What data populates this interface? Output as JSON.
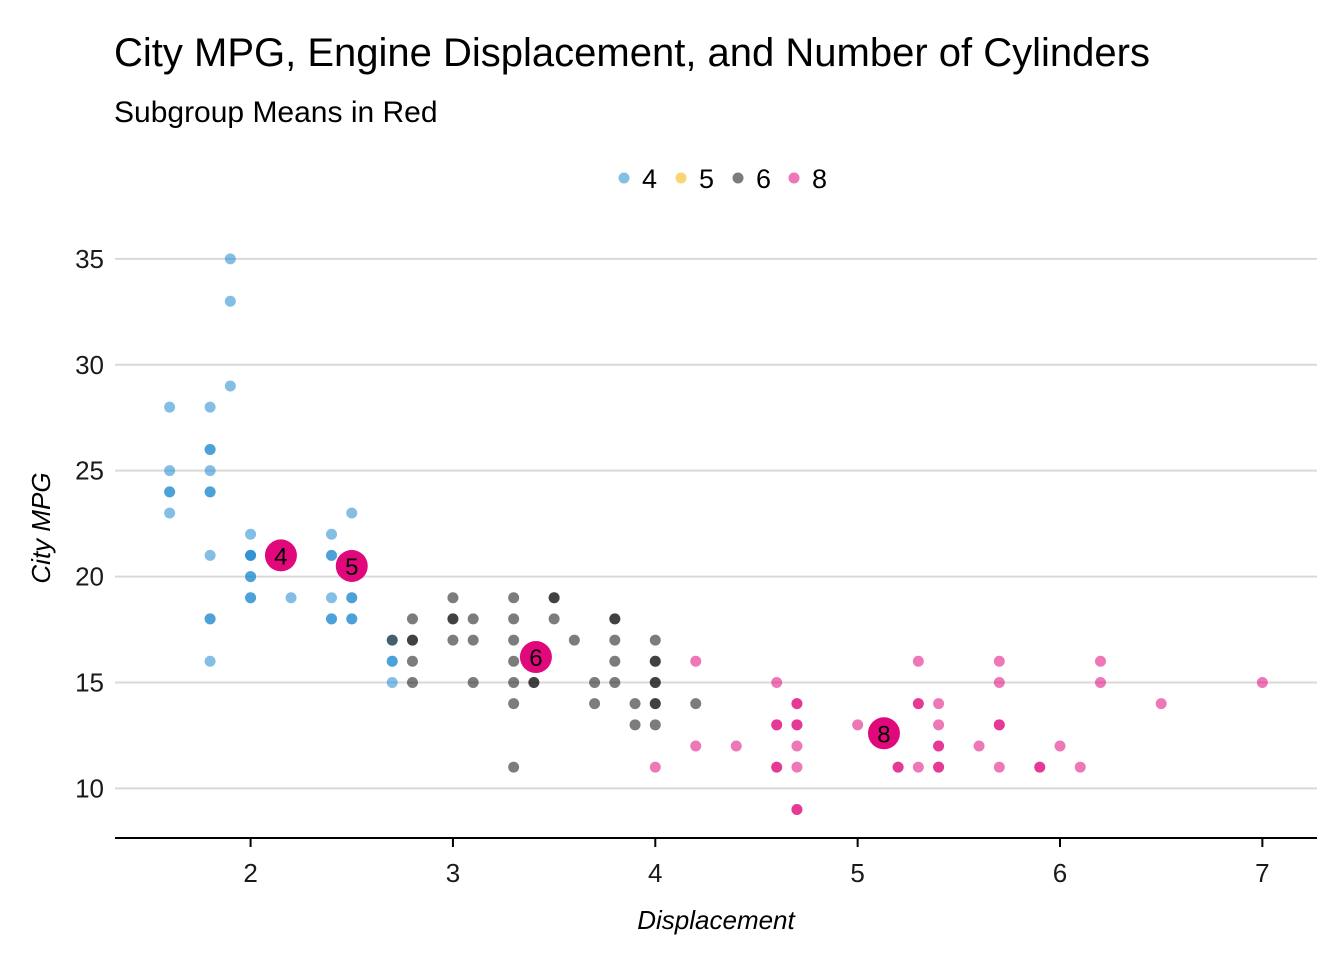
{
  "chart_data": {
    "type": "scatter",
    "title": "City MPG, Engine Displacement, and Number of Cylinders",
    "subtitle": "Subgroup Means in Red",
    "xlabel": "Displacement",
    "ylabel": "City MPG",
    "xlim": [
      1.33,
      7.27
    ],
    "ylim": [
      7.75,
      36.6
    ],
    "xticks": [
      2,
      3,
      4,
      5,
      6,
      7
    ],
    "yticks": [
      10,
      15,
      20,
      25,
      30,
      35
    ],
    "grid": "horizontal",
    "legend_position": "top",
    "legend": [
      {
        "label": "4",
        "color": "#1f88cf"
      },
      {
        "label": "5",
        "color": "#f5b301"
      },
      {
        "label": "6",
        "color": "#111111"
      },
      {
        "label": "8",
        "color": "#e0087b"
      }
    ],
    "mean_color": "#e0087b",
    "series": [
      {
        "name": "4",
        "color": "#1f88cf",
        "points": [
          [
            1.6,
            28
          ],
          [
            1.6,
            25
          ],
          [
            1.6,
            24
          ],
          [
            1.6,
            24
          ],
          [
            1.6,
            23
          ],
          [
            1.8,
            28
          ],
          [
            1.8,
            26
          ],
          [
            1.8,
            26
          ],
          [
            1.8,
            25
          ],
          [
            1.8,
            24
          ],
          [
            1.8,
            24
          ],
          [
            1.8,
            21
          ],
          [
            1.8,
            18
          ],
          [
            1.8,
            18
          ],
          [
            1.8,
            16
          ],
          [
            1.9,
            35
          ],
          [
            1.9,
            33
          ],
          [
            1.9,
            29
          ],
          [
            2.0,
            22
          ],
          [
            2.0,
            21
          ],
          [
            2.0,
            21
          ],
          [
            2.0,
            21
          ],
          [
            2.0,
            20
          ],
          [
            2.0,
            20
          ],
          [
            2.0,
            19
          ],
          [
            2.0,
            19
          ],
          [
            2.2,
            21
          ],
          [
            2.2,
            19
          ],
          [
            2.4,
            22
          ],
          [
            2.4,
            21
          ],
          [
            2.4,
            21
          ],
          [
            2.4,
            19
          ],
          [
            2.4,
            18
          ],
          [
            2.4,
            18
          ],
          [
            2.5,
            23
          ],
          [
            2.5,
            21
          ],
          [
            2.5,
            19
          ],
          [
            2.5,
            19
          ],
          [
            2.5,
            18
          ],
          [
            2.5,
            18
          ],
          [
            2.7,
            17
          ],
          [
            2.7,
            16
          ],
          [
            2.7,
            16
          ],
          [
            2.7,
            15
          ]
        ]
      },
      {
        "name": "5",
        "color": "#f5b301",
        "points": [
          [
            2.5,
            21
          ],
          [
            2.5,
            20
          ]
        ]
      },
      {
        "name": "6",
        "color": "#111111",
        "points": [
          [
            2.7,
            17
          ],
          [
            2.8,
            18
          ],
          [
            2.8,
            17
          ],
          [
            2.8,
            17
          ],
          [
            2.8,
            16
          ],
          [
            2.8,
            15
          ],
          [
            3.0,
            19
          ],
          [
            3.0,
            18
          ],
          [
            3.0,
            18
          ],
          [
            3.0,
            17
          ],
          [
            3.1,
            18
          ],
          [
            3.1,
            17
          ],
          [
            3.1,
            15
          ],
          [
            3.3,
            19
          ],
          [
            3.3,
            18
          ],
          [
            3.3,
            17
          ],
          [
            3.3,
            16
          ],
          [
            3.3,
            15
          ],
          [
            3.3,
            14
          ],
          [
            3.3,
            11
          ],
          [
            3.4,
            15
          ],
          [
            3.4,
            15
          ],
          [
            3.5,
            19
          ],
          [
            3.5,
            19
          ],
          [
            3.5,
            18
          ],
          [
            3.6,
            17
          ],
          [
            3.7,
            15
          ],
          [
            3.7,
            14
          ],
          [
            3.8,
            18
          ],
          [
            3.8,
            18
          ],
          [
            3.8,
            17
          ],
          [
            3.8,
            16
          ],
          [
            3.8,
            15
          ],
          [
            3.9,
            14
          ],
          [
            3.9,
            13
          ],
          [
            4.0,
            17
          ],
          [
            4.0,
            16
          ],
          [
            4.0,
            16
          ],
          [
            4.0,
            15
          ],
          [
            4.0,
            15
          ],
          [
            4.0,
            14
          ],
          [
            4.0,
            14
          ],
          [
            4.0,
            13
          ],
          [
            4.2,
            14
          ]
        ]
      },
      {
        "name": "8",
        "color": "#e0087b",
        "points": [
          [
            4.0,
            11
          ],
          [
            4.2,
            16
          ],
          [
            4.2,
            12
          ],
          [
            4.4,
            12
          ],
          [
            4.6,
            15
          ],
          [
            4.6,
            13
          ],
          [
            4.6,
            13
          ],
          [
            4.6,
            11
          ],
          [
            4.6,
            11
          ],
          [
            4.7,
            14
          ],
          [
            4.7,
            14
          ],
          [
            4.7,
            13
          ],
          [
            4.7,
            13
          ],
          [
            4.7,
            12
          ],
          [
            4.7,
            11
          ],
          [
            4.7,
            9
          ],
          [
            4.7,
            9
          ],
          [
            5.0,
            13
          ],
          [
            5.2,
            11
          ],
          [
            5.2,
            11
          ],
          [
            5.3,
            16
          ],
          [
            5.3,
            14
          ],
          [
            5.3,
            14
          ],
          [
            5.3,
            11
          ],
          [
            5.4,
            14
          ],
          [
            5.4,
            13
          ],
          [
            5.4,
            12
          ],
          [
            5.4,
            12
          ],
          [
            5.4,
            11
          ],
          [
            5.4,
            11
          ],
          [
            5.6,
            12
          ],
          [
            5.7,
            16
          ],
          [
            5.7,
            15
          ],
          [
            5.7,
            13
          ],
          [
            5.7,
            13
          ],
          [
            5.7,
            11
          ],
          [
            5.9,
            11
          ],
          [
            5.9,
            11
          ],
          [
            6.0,
            12
          ],
          [
            6.1,
            11
          ],
          [
            6.2,
            16
          ],
          [
            6.2,
            15
          ],
          [
            6.5,
            14
          ],
          [
            7.0,
            15
          ]
        ]
      }
    ],
    "means": [
      {
        "label": "4",
        "x": 2.15,
        "y": 21.0
      },
      {
        "label": "5",
        "x": 2.5,
        "y": 20.5
      },
      {
        "label": "6",
        "x": 3.41,
        "y": 16.2
      },
      {
        "label": "8",
        "x": 5.13,
        "y": 12.6
      }
    ]
  }
}
